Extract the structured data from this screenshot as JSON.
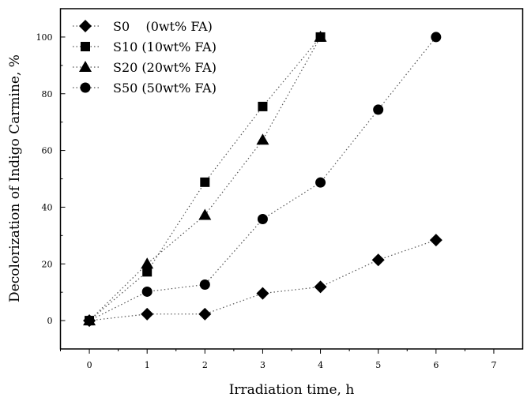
{
  "chart_data": {
    "type": "scatter",
    "title": "",
    "xlabel": "Irradiation time, h",
    "ylabel": "Decolorization of Indigo Carmine, %",
    "xlim": [
      -0.5,
      7.5
    ],
    "ylim": [
      -10,
      110
    ],
    "xticks": [
      0,
      1,
      2,
      3,
      4,
      5,
      6,
      7
    ],
    "yticks": [
      0,
      20,
      40,
      60,
      80,
      100
    ],
    "legend_position": "top-left",
    "grid": false,
    "series": [
      {
        "name": "S0    (0wt% FA)",
        "marker": "diamond",
        "x": [
          0,
          1,
          2,
          3,
          4,
          5,
          6
        ],
        "y": [
          0,
          2.3,
          2.3,
          9.6,
          11.9,
          21.4,
          28.4
        ]
      },
      {
        "name": "S10 (10wt% FA)",
        "marker": "square",
        "x": [
          0,
          1,
          2,
          3,
          4
        ],
        "y": [
          0,
          17.2,
          48.8,
          75.5,
          100
        ]
      },
      {
        "name": "S20 (20wt% FA)",
        "marker": "triangle",
        "x": [
          0,
          1,
          2,
          3,
          4
        ],
        "y": [
          0,
          20,
          37.2,
          63.7,
          100
        ]
      },
      {
        "name": "S50 (50wt% FA)",
        "marker": "circle",
        "x": [
          0,
          1,
          2,
          3,
          4,
          5,
          6
        ],
        "y": [
          0,
          10.2,
          12.7,
          35.8,
          48.7,
          74.4,
          100
        ]
      }
    ]
  }
}
